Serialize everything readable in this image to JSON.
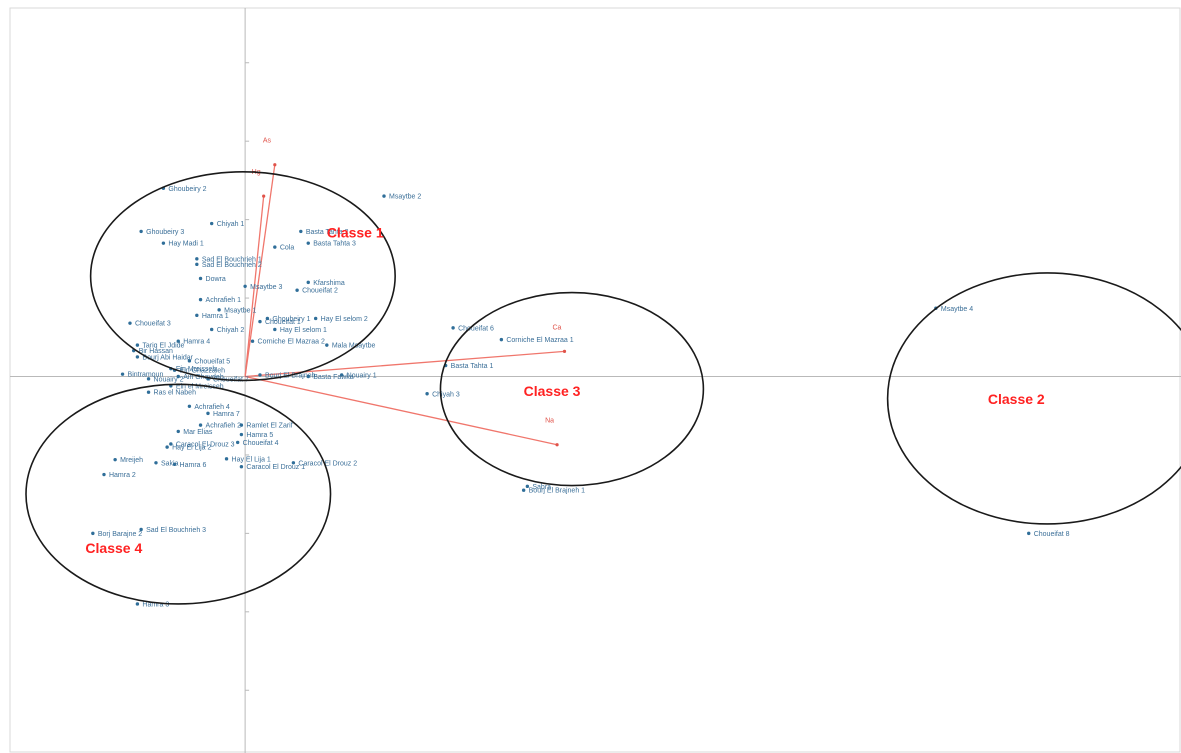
{
  "chart_data": {
    "type": "scatter",
    "grid": false,
    "xlabel": "",
    "ylabel": "",
    "xlim": [
      -3.3,
      12.6
    ],
    "ylim": [
      -4.8,
      4.8
    ],
    "points": [
      {
        "label": "Msaytbe 2",
        "x": 1.87,
        "y": 2.3
      },
      {
        "label": "Ghoubeiry 2",
        "x": -1.1,
        "y": 2.4
      },
      {
        "label": "Chiyah 1",
        "x": -0.45,
        "y": 1.95
      },
      {
        "label": "Ghoubeiry 3",
        "x": -1.4,
        "y": 1.85
      },
      {
        "label": "Hay Madi 1",
        "x": -1.1,
        "y": 1.7
      },
      {
        "label": "Basta Tahta 2",
        "x": 0.75,
        "y": 1.85
      },
      {
        "label": "Basta Tahta 3",
        "x": 0.85,
        "y": 1.7
      },
      {
        "label": "Cola",
        "x": 0.4,
        "y": 1.65
      },
      {
        "label": "Sad El Bouchrieh 1",
        "x": -0.65,
        "y": 1.5
      },
      {
        "label": "Sad El Bouchrieh 2",
        "x": -0.65,
        "y": 1.43
      },
      {
        "label": "Dowra",
        "x": -0.6,
        "y": 1.25
      },
      {
        "label": "Msaytbe 3",
        "x": 0.0,
        "y": 1.15
      },
      {
        "label": "Kfarshima",
        "x": 0.85,
        "y": 1.2
      },
      {
        "label": "Choueifat 2",
        "x": 0.7,
        "y": 1.1
      },
      {
        "label": "Achrafieh 1",
        "x": -0.6,
        "y": 0.98
      },
      {
        "label": "Msaytbe 1",
        "x": -0.35,
        "y": 0.85
      },
      {
        "label": "Hamra 1",
        "x": -0.65,
        "y": 0.78
      },
      {
        "label": "Ghoubeiry 1",
        "x": 0.3,
        "y": 0.74
      },
      {
        "label": "Hay El selom 2",
        "x": 0.95,
        "y": 0.74
      },
      {
        "label": "Choueifat 1",
        "x": 0.2,
        "y": 0.7
      },
      {
        "label": "Choueifat 3",
        "x": -1.55,
        "y": 0.68
      },
      {
        "label": "Chiyah 2",
        "x": -0.45,
        "y": 0.6
      },
      {
        "label": "Hay El selom 1",
        "x": 0.4,
        "y": 0.6
      },
      {
        "label": "Corniche El Mazraa 2",
        "x": 0.1,
        "y": 0.45
      },
      {
        "label": "Mala Msaytbe",
        "x": 1.1,
        "y": 0.4
      },
      {
        "label": "Hamra 4",
        "x": -0.9,
        "y": 0.45
      },
      {
        "label": "Tariq El Jdide",
        "x": -1.45,
        "y": 0.4
      },
      {
        "label": "Bir Hassan",
        "x": -1.5,
        "y": 0.33
      },
      {
        "label": "Bourj Abi Haidar",
        "x": -1.45,
        "y": 0.25
      },
      {
        "label": "Choueifat 5",
        "x": -0.75,
        "y": 0.2
      },
      {
        "label": "Ein Mreisseh",
        "x": -1.0,
        "y": 0.1
      },
      {
        "label": "Ein Ghazzaleh",
        "x": -0.95,
        "y": 0.08
      },
      {
        "label": "Ain Ghaydeh",
        "x": -0.9,
        "y": 0.0
      },
      {
        "label": "Bintramoun",
        "x": -1.65,
        "y": 0.03
      },
      {
        "label": "Nouairy 2",
        "x": -1.3,
        "y": -0.03
      },
      {
        "label": "Choueifat 7",
        "x": -0.5,
        "y": -0.03
      },
      {
        "label": "Bourj El Brajneh",
        "x": 0.2,
        "y": 0.02
      },
      {
        "label": "Nouairy 1",
        "x": 1.3,
        "y": 0.02
      },
      {
        "label": "Basta Fawka",
        "x": 0.85,
        "y": 0.0
      },
      {
        "label": "Ein el Mreisseh",
        "x": -1.0,
        "y": -0.12
      },
      {
        "label": "Ras el Nabeh",
        "x": -1.3,
        "y": -0.2
      },
      {
        "label": "Achrafieh 4",
        "x": -0.75,
        "y": -0.38
      },
      {
        "label": "Hamra 7",
        "x": -0.5,
        "y": -0.47
      },
      {
        "label": "Achrafieh 2",
        "x": -0.6,
        "y": -0.62
      },
      {
        "label": "Ramlet El Zarif",
        "x": -0.05,
        "y": -0.62
      },
      {
        "label": "Mar Elias",
        "x": -0.9,
        "y": -0.7
      },
      {
        "label": "Hamra 5",
        "x": -0.05,
        "y": -0.74
      },
      {
        "label": "Caracol El Drouz 3",
        "x": -1.0,
        "y": -0.86
      },
      {
        "label": "Choueifat 4",
        "x": -0.1,
        "y": -0.84
      },
      {
        "label": "Hay El Lija 2",
        "x": -1.05,
        "y": -0.9
      },
      {
        "label": "Mreijeh",
        "x": -1.75,
        "y": -1.06
      },
      {
        "label": "Sakia",
        "x": -1.2,
        "y": -1.1
      },
      {
        "label": "Hamra 6",
        "x": -0.95,
        "y": -1.12
      },
      {
        "label": "Hay El Lija 1",
        "x": -0.25,
        "y": -1.05
      },
      {
        "label": "Caracol El Drouz 2",
        "x": 0.65,
        "y": -1.1
      },
      {
        "label": "Caracol El Drouz 1",
        "x": -0.05,
        "y": -1.15
      },
      {
        "label": "Hamra 2",
        "x": -1.9,
        "y": -1.25
      },
      {
        "label": "Sad El Bouchrieh 3",
        "x": -1.4,
        "y": -1.95
      },
      {
        "label": "Borj Barajne 2",
        "x": -2.05,
        "y": -2.0
      },
      {
        "label": "Hamra 3",
        "x": -1.45,
        "y": -2.9
      },
      {
        "label": "Choueifat 6",
        "x": 2.8,
        "y": 0.62
      },
      {
        "label": "Corniche El Mazraa 1",
        "x": 3.45,
        "y": 0.47
      },
      {
        "label": "Basta Tahta 1",
        "x": 2.7,
        "y": 0.14
      },
      {
        "label": "Chiyah 3",
        "x": 2.45,
        "y": -0.22
      },
      {
        "label": "Sabra",
        "x": 3.8,
        "y": -1.4
      },
      {
        "label": "Bourj El Brajneh 1",
        "x": 3.75,
        "y": -1.45
      },
      {
        "label": "Msaytbe 4",
        "x": 9.3,
        "y": 0.87
      },
      {
        "label": "Choueifat 8",
        "x": 10.55,
        "y": -2.0
      }
    ],
    "vectors": [
      {
        "label": "As",
        "x": 0.4,
        "y": 2.7
      },
      {
        "label": "Hg",
        "x": 0.25,
        "y": 2.3
      },
      {
        "label": "Ca",
        "x": 4.3,
        "y": 0.32
      },
      {
        "label": "Na",
        "x": 4.2,
        "y": -0.87
      }
    ],
    "annotations": [
      {
        "label": "Classe 1",
        "cx": -0.03,
        "cy": 1.28,
        "rx": 2.05,
        "ry": 1.33,
        "lx": 1.1,
        "ly": 1.77
      },
      {
        "label": "Classe 2",
        "cx": 10.8,
        "cy": -0.28,
        "rx": 2.15,
        "ry": 1.6,
        "lx": 10.0,
        "ly": -0.35
      },
      {
        "label": "Classe 3",
        "cx": 4.4,
        "cy": -0.16,
        "rx": 1.77,
        "ry": 1.23,
        "lx": 3.75,
        "ly": -0.25
      },
      {
        "label": "Classe 4",
        "cx": -0.9,
        "cy": -1.5,
        "rx": 2.05,
        "ry": 1.4,
        "lx": -2.15,
        "ly": -2.25
      }
    ]
  }
}
